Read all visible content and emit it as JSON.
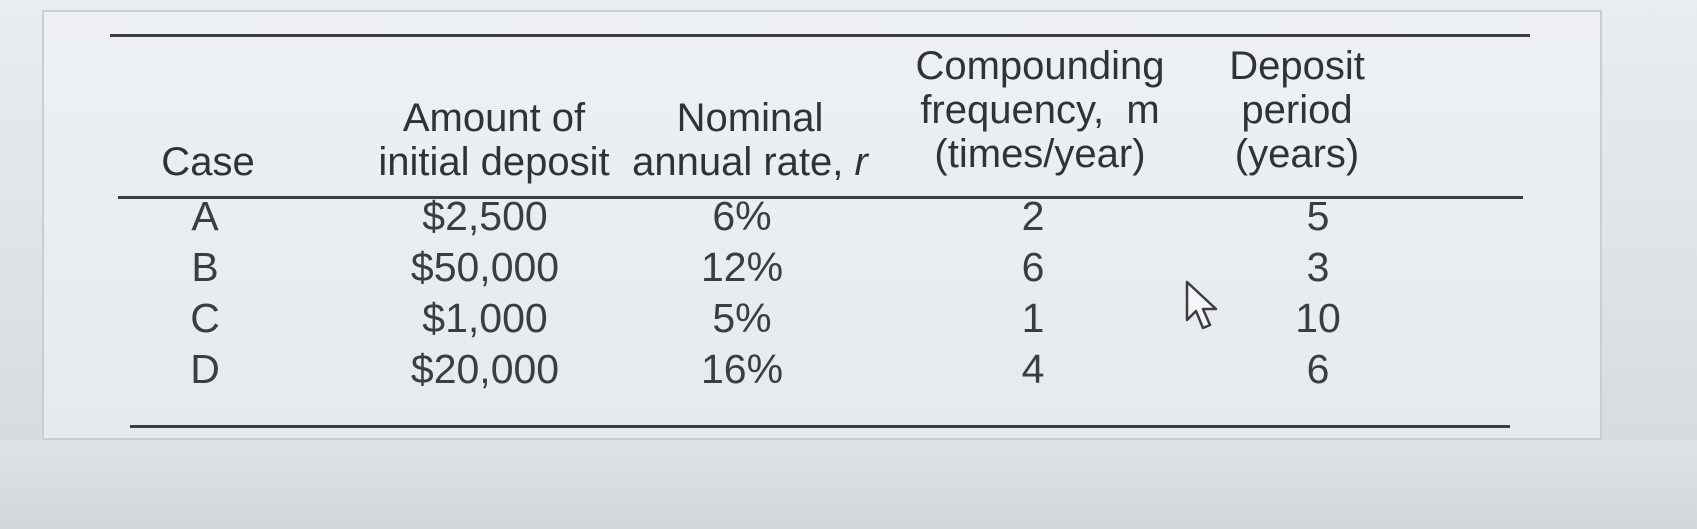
{
  "table": {
    "headers": {
      "case": [
        "Case"
      ],
      "amount": [
        "Amount of",
        "initial deposit"
      ],
      "rate": [
        "Nominal",
        "annual rate,"
      ],
      "rate_var": "r",
      "frequency": [
        "Compounding",
        "frequency,  m",
        "(times/year)"
      ],
      "period": [
        "Deposit",
        "period",
        "(years)"
      ]
    },
    "rows": [
      {
        "case": "A",
        "amount": "$2,500",
        "rate": "6%",
        "frequency": "2",
        "period": "5"
      },
      {
        "case": "B",
        "amount": "$50,000",
        "rate": "12%",
        "frequency": "6",
        "period": "3"
      },
      {
        "case": "C",
        "amount": "$1,000",
        "rate": "5%",
        "frequency": "1",
        "period": "10"
      },
      {
        "case": "D",
        "amount": "$20,000",
        "rate": "16%",
        "frequency": "4",
        "period": "6"
      }
    ]
  },
  "cursor": {
    "icon": "mouse-pointer-icon"
  }
}
